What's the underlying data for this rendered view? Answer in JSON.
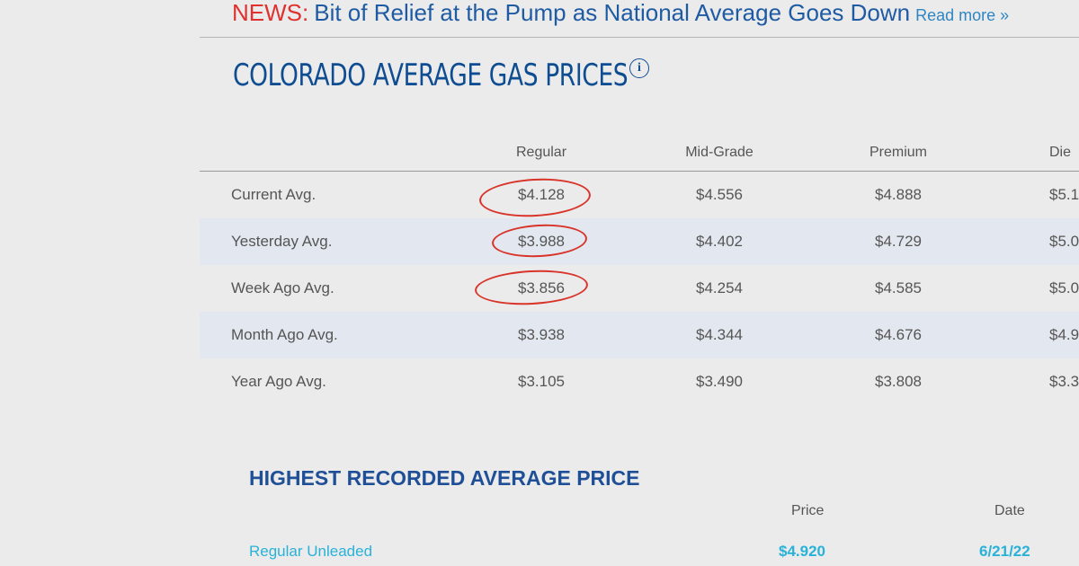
{
  "news": {
    "tag": "NEWS:",
    "headline": "Bit of Relief at the Pump as National Average Goes Down",
    "read_more": "Read more »"
  },
  "page_title": "COLORADO AVERAGE GAS PRICES",
  "info_icon": {
    "icon": "info-icon",
    "glyph": "i"
  },
  "price_table": {
    "columns": [
      "Regular",
      "Mid-Grade",
      "Premium",
      "Die"
    ],
    "rows": [
      {
        "label": "Current Avg.",
        "regular": "$4.128",
        "midgrade": "$4.556",
        "premium": "$4.888",
        "diesel": "$5.1"
      },
      {
        "label": "Yesterday Avg.",
        "regular": "$3.988",
        "midgrade": "$4.402",
        "premium": "$4.729",
        "diesel": "$5.0"
      },
      {
        "label": "Week Ago Avg.",
        "regular": "$3.856",
        "midgrade": "$4.254",
        "premium": "$4.585",
        "diesel": "$5.0"
      },
      {
        "label": "Month Ago Avg.",
        "regular": "$3.938",
        "midgrade": "$4.344",
        "premium": "$4.676",
        "diesel": "$4.9"
      },
      {
        "label": "Year Ago Avg.",
        "regular": "$3.105",
        "midgrade": "$3.490",
        "premium": "$3.808",
        "diesel": "$3.3"
      }
    ],
    "annotation_color": "#d8342a"
  },
  "highest_recorded": {
    "title": "HIGHEST RECORDED AVERAGE PRICE",
    "columns": [
      "Price",
      "Date"
    ],
    "row": {
      "label": "Regular Unleaded",
      "price": "$4.920",
      "date": "6/21/22"
    }
  },
  "colors": {
    "news_tag": "#e0312f",
    "news_text": "#1f5ba3",
    "title": "#0f4d92",
    "row_alt": "#e3e8f0",
    "highlight": "#29b2d8"
  }
}
